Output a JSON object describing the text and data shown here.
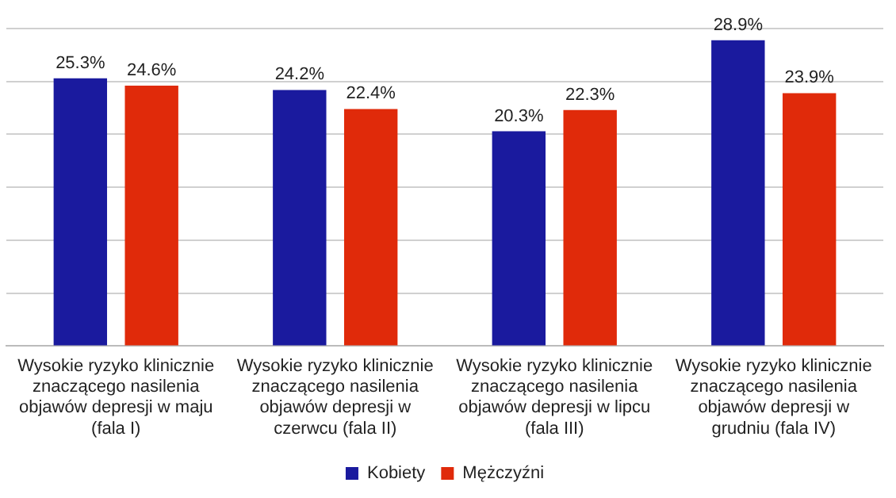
{
  "chart_data": {
    "type": "bar",
    "categories": [
      "Wysokie ryzyko klinicznie znaczącego nasilenia objawów depresji w maju (fala I)",
      "Wysokie ryzyko klinicznie znaczącego nasilenia objawów depresji w czerwcu (fala II)",
      "Wysokie ryzyko klinicznie znaczącego nasilenia objawów depresji w lipcu (fala III)",
      "Wysokie ryzyko klinicznie znaczącego nasilenia objawów depresji w grudniu (fala IV)"
    ],
    "series": [
      {
        "name": "Kobiety",
        "color": "#1a1a9e",
        "values": [
          25.3,
          24.2,
          20.3,
          28.9
        ],
        "value_labels": [
          "25.3%",
          "24.2%",
          "20.3%",
          "28.9%"
        ]
      },
      {
        "name": "Mężczyźni",
        "color": "#e02a0a",
        "values": [
          24.6,
          22.4,
          22.3,
          23.9
        ],
        "value_labels": [
          "24.6%",
          "22.4%",
          "22.3%",
          "23.9%"
        ]
      }
    ],
    "grid": "y",
    "legend": "bottom",
    "tick_labels": "x"
  }
}
